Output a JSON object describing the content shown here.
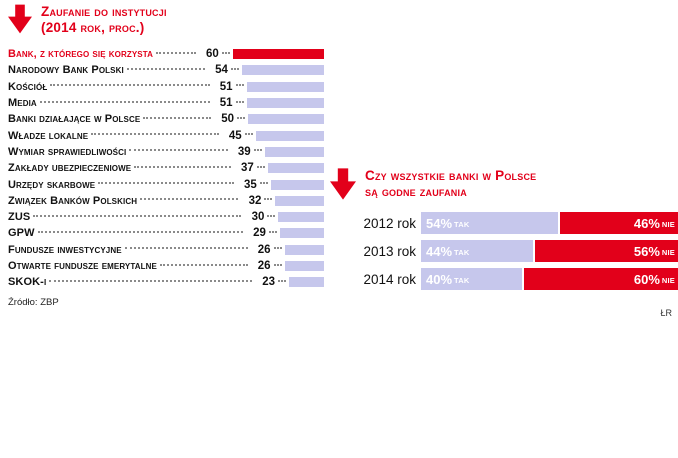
{
  "left_chart": {
    "title_line1": "Zaufanie do instytucji",
    "title_line2": "(2014 rok, proc.)",
    "source": "Źródło: ZBP"
  },
  "right_chart": {
    "title_line1": "Czy wszystkie banki w Polsce",
    "title_line2": "są godne zaufania"
  },
  "credit": "ŁR",
  "colors": {
    "red": "#e2001a",
    "lavender": "#c6c7ec",
    "text": "#111111",
    "leader_dots": "#8a8a8a",
    "bar_text": "#ffffff"
  },
  "chart_data": [
    {
      "type": "bar",
      "orientation": "horizontal",
      "title": "Zaufanie do instytucji (2014 rok, proc.)",
      "categories": [
        "Bank, z którego się korzysta",
        "Narodowy Bank Polski",
        "Kościół",
        "Media",
        "Banki działające w Polsce",
        "Władze lokalne",
        "Wymiar sprawiedliwości",
        "Zakłady ubezpieczeniowe",
        "Urzędy skarbowe",
        "Związek Banków Polskich",
        "ZUS",
        "GPW",
        "Fundusze inwestycyjne",
        "Otwarte fundusze emerytalne",
        "SKOK-i"
      ],
      "values": [
        60,
        54,
        51,
        51,
        50,
        45,
        39,
        37,
        35,
        32,
        30,
        29,
        26,
        26,
        23
      ],
      "highlight_index": 0,
      "xlim": [
        0,
        60
      ],
      "source": "Źródło: ZBP",
      "grid": false,
      "legend": false
    },
    {
      "type": "bar",
      "stacked": true,
      "orientation": "horizontal",
      "title": "Czy wszystkie banki w Polsce są godne zaufania",
      "categories": [
        "2012 rok",
        "2013 rok",
        "2014 rok"
      ],
      "series": [
        {
          "name": "TAK",
          "values": [
            54,
            44,
            40
          ]
        },
        {
          "name": "NIE",
          "values": [
            46,
            56,
            60
          ]
        }
      ],
      "xlim": [
        0,
        100
      ],
      "grid": false,
      "legend": false
    }
  ]
}
